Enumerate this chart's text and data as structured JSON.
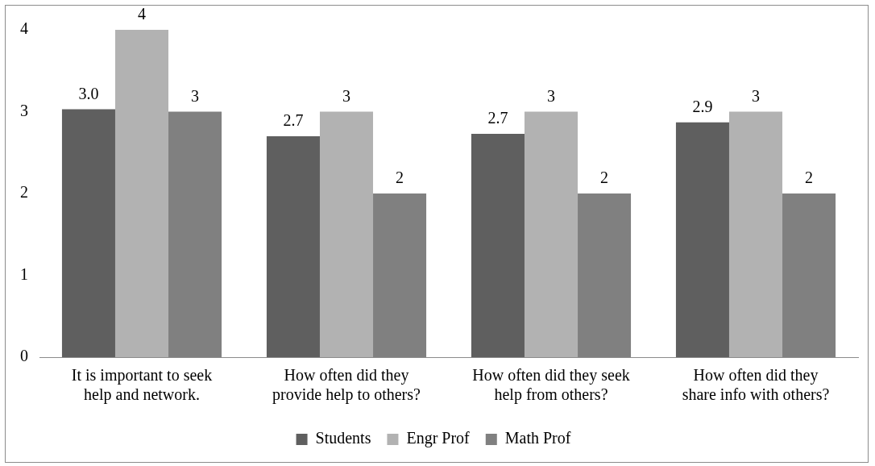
{
  "chart_data": {
    "type": "bar",
    "categories": [
      "It is important to seek help and network.",
      "How often did they provide help to others?",
      "How often did they seek help from others?",
      "How often did they share info with others?"
    ],
    "series": [
      {
        "name": "Students",
        "color": "#5f5f5f",
        "values": [
          3.03,
          2.7,
          2.73,
          2.87
        ],
        "value_labels": [
          "3.0",
          "2.7",
          "2.7",
          "2.9"
        ]
      },
      {
        "name": "Engr Prof",
        "color": "#b2b2b2",
        "values": [
          4,
          3,
          3,
          3
        ],
        "value_labels": [
          "4",
          "3",
          "3",
          "3"
        ]
      },
      {
        "name": "Math Prof",
        "color": "#808080",
        "values": [
          3,
          2,
          2,
          2
        ],
        "value_labels": [
          "3",
          "2",
          "2",
          "2"
        ]
      }
    ],
    "ylim": [
      0,
      4
    ],
    "yticks": [
      0,
      1,
      2,
      3,
      4
    ],
    "grid": false,
    "legend": "bottom"
  }
}
